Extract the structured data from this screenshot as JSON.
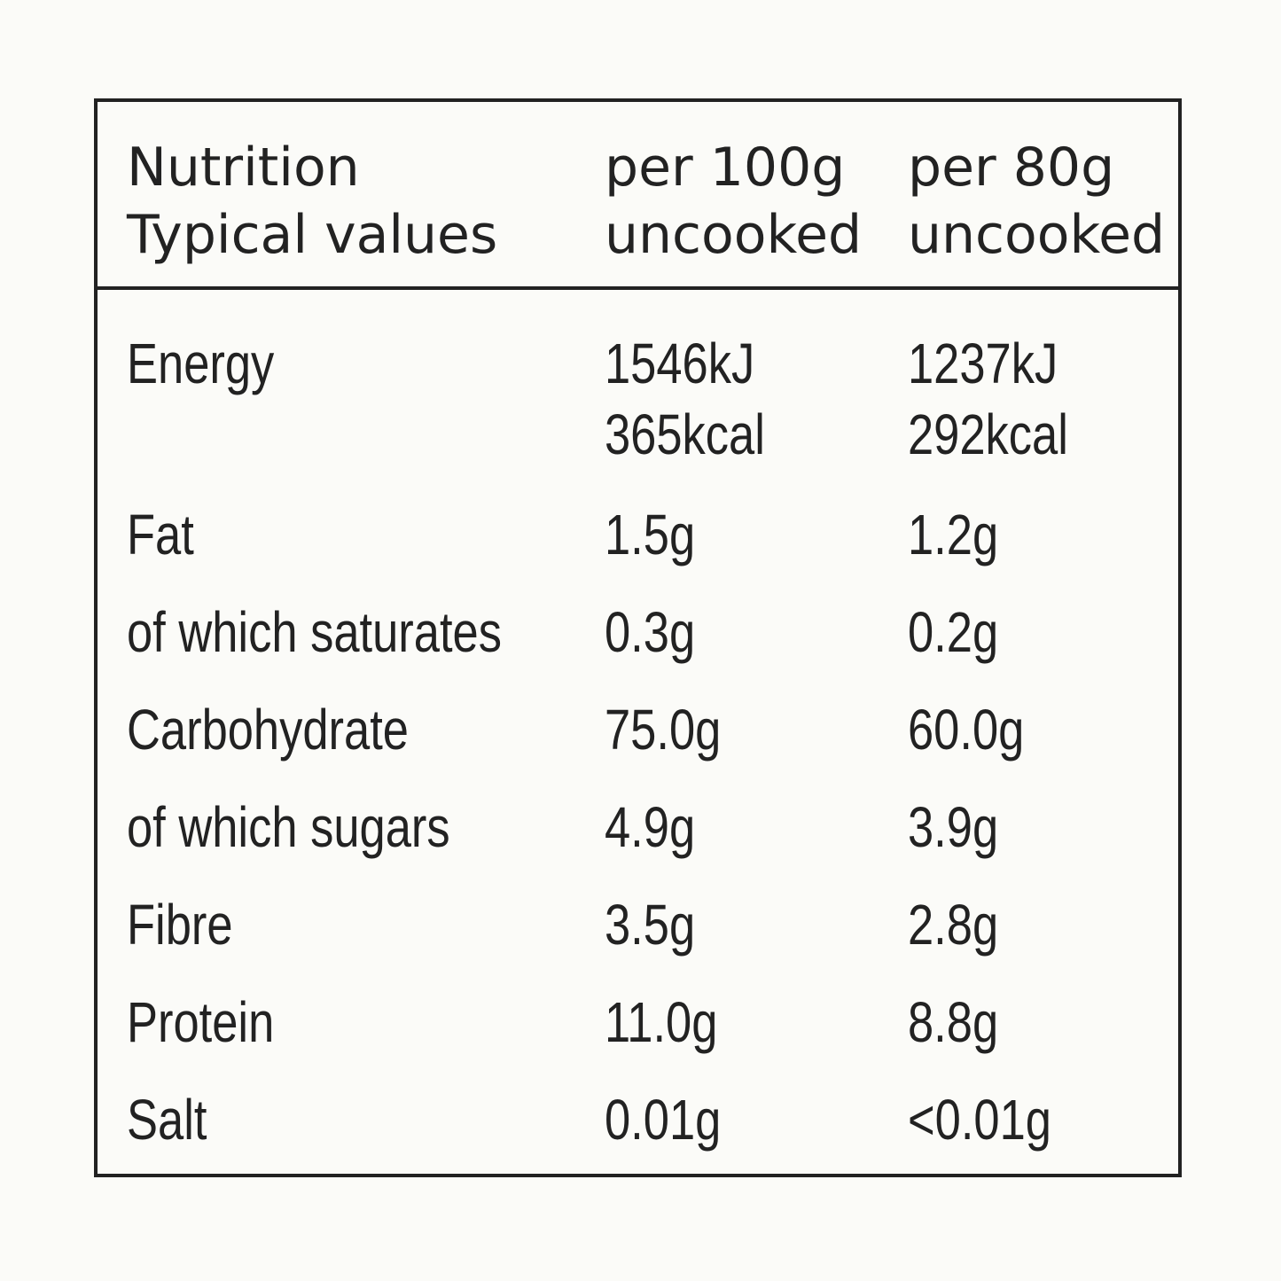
{
  "header": {
    "col1_line1": "Nutrition",
    "col1_line2": "Typical values",
    "col2_line1": "per 100g",
    "col2_line2": "uncooked",
    "col3_line1": "per 80g",
    "col3_line2": "uncooked"
  },
  "rows": [
    {
      "name": "Energy",
      "per100_line1": "1546kJ",
      "per100_line2": "365kcal",
      "per80_line1": "1237kJ",
      "per80_line2": "292kcal"
    },
    {
      "name": "Fat",
      "per100": "1.5g",
      "per80": "1.2g"
    },
    {
      "name": "of which saturates",
      "per100": "0.3g",
      "per80": "0.2g"
    },
    {
      "name": "Carbohydrate",
      "per100": "75.0g",
      "per80": "60.0g"
    },
    {
      "name": "of which sugars",
      "per100": "4.9g",
      "per80": "3.9g"
    },
    {
      "name": "Fibre",
      "per100": "3.5g",
      "per80": "2.8g"
    },
    {
      "name": "Protein",
      "per100": "11.0g",
      "per80": "8.8g"
    },
    {
      "name": "Salt",
      "per100": "0.01g",
      "per80": "<0.01g"
    }
  ]
}
